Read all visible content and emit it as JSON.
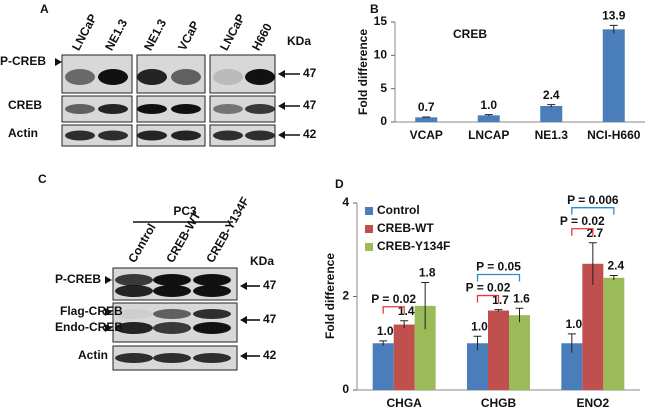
{
  "blot_a": {
    "label": "A",
    "lanes": [
      "LNCaP",
      "NE1.3",
      "NE1.3",
      "VCaP",
      "LNCaP",
      "H660"
    ],
    "unit": "KDa",
    "rows": [
      {
        "name": "P-CREB",
        "marker": "47"
      },
      {
        "name": "CREB",
        "marker": "47"
      },
      {
        "name": "Actin",
        "marker": "42"
      }
    ]
  },
  "blot_c": {
    "label": "C",
    "group": "PC3",
    "lanes": [
      "Control",
      "CREB-WT",
      "CREB-Y134F"
    ],
    "unit": "KDa",
    "rows": [
      {
        "name": "P-CREB",
        "marker": "47"
      },
      {
        "name": "Flag-CREB"
      },
      {
        "name": "Endo-CREB",
        "marker": "47"
      },
      {
        "name": "Actin",
        "marker": "42"
      }
    ]
  },
  "chart_data": [
    {
      "type": "bar",
      "panel": "B",
      "title": "CREB",
      "y_label": "Fold difference",
      "categories": [
        "VCAP",
        "LNCAP",
        "NE1.3",
        "NCI-H660"
      ],
      "values": [
        0.7,
        1.0,
        2.4,
        13.9
      ],
      "value_labels": [
        "0.7",
        "1.0",
        "2.4",
        "13.9"
      ],
      "errors": [
        0.05,
        0.1,
        0.2,
        0.6
      ],
      "color": "#4a7ebb",
      "ylim": [
        0,
        15
      ],
      "yticks": [
        0,
        5,
        10,
        15
      ]
    },
    {
      "type": "bar",
      "panel": "D",
      "y_label": "Fold difference",
      "categories": [
        "CHGA",
        "CHGB",
        "ENO2"
      ],
      "series": [
        {
          "name": "Control",
          "color": "#4a7ebb",
          "values": [
            1.0,
            1.0,
            1.0
          ],
          "value_labels": [
            "1.0",
            "1.0",
            "1.0"
          ],
          "errors": [
            0.05,
            0.15,
            0.2
          ]
        },
        {
          "name": "CREB-WT",
          "color": "#c0504d",
          "values": [
            1.4,
            1.7,
            2.7
          ],
          "value_labels": [
            "1.4",
            "1.7",
            "2.7"
          ],
          "errors": [
            0.08,
            0.02,
            0.45
          ]
        },
        {
          "name": "CREB-Y134F",
          "color": "#9bbb59",
          "values": [
            1.8,
            1.6,
            2.4
          ],
          "value_labels": [
            "1.8",
            "1.6",
            "2.4"
          ],
          "errors": [
            0.5,
            0.15,
            0.05
          ]
        }
      ],
      "annotations": [
        {
          "text": "P = 0.02",
          "category": "CHGA",
          "from": "Control",
          "to": "CREB-WT",
          "color": "#e8383d"
        },
        {
          "text": "P = 0.02",
          "category": "CHGB",
          "from": "Control",
          "to": "CREB-WT",
          "color": "#e8383d"
        },
        {
          "text": "P = 0.05",
          "category": "CHGB",
          "from": "Control",
          "to": "CREB-Y134F",
          "color": "#2e8bd0"
        },
        {
          "text": "P = 0.02",
          "category": "ENO2",
          "from": "Control",
          "to": "CREB-WT",
          "color": "#e8383d"
        },
        {
          "text": "P = 0.006",
          "category": "ENO2",
          "from": "Control",
          "to": "CREB-Y134F",
          "color": "#2e8bd0"
        }
      ],
      "legend": "upper left",
      "ylim": [
        0,
        4
      ],
      "yticks": [
        0,
        2,
        4
      ]
    }
  ]
}
